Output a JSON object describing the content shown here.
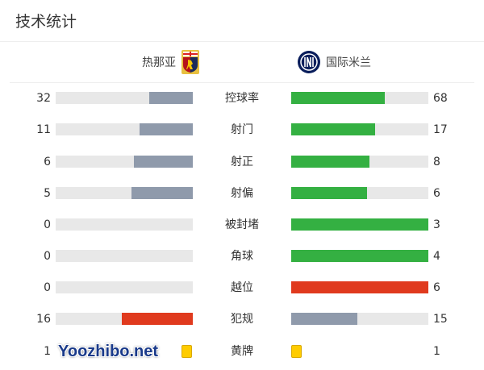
{
  "header": {
    "title": "技术统计"
  },
  "teams": {
    "home": {
      "name": "热那亚",
      "logo": "genoa-crest"
    },
    "away": {
      "name": "国际米兰",
      "logo": "inter-crest"
    }
  },
  "colors": {
    "gray": "#8f9aab",
    "green": "#34b042",
    "red": "#e03a1e",
    "yellow": "#ffcc00",
    "track": "#e8e8e8"
  },
  "stats": [
    {
      "label": "控球率",
      "home": "32",
      "away": "68",
      "home_share": 0.32,
      "away_share": 0.68,
      "home_color": "#8f9aab",
      "away_color": "#34b042"
    },
    {
      "label": "射门",
      "home": "11",
      "away": "17",
      "home_share": 0.39,
      "away_share": 0.61,
      "home_color": "#8f9aab",
      "away_color": "#34b042"
    },
    {
      "label": "射正",
      "home": "6",
      "away": "8",
      "home_share": 0.43,
      "away_share": 0.57,
      "home_color": "#8f9aab",
      "away_color": "#34b042"
    },
    {
      "label": "射偏",
      "home": "5",
      "away": "6",
      "home_share": 0.45,
      "away_share": 0.55,
      "home_color": "#8f9aab",
      "away_color": "#34b042"
    },
    {
      "label": "被封堵",
      "home": "0",
      "away": "3",
      "home_share": 0,
      "away_share": 1,
      "home_color": "#8f9aab",
      "away_color": "#34b042"
    },
    {
      "label": "角球",
      "home": "0",
      "away": "4",
      "home_share": 0,
      "away_share": 1,
      "home_color": "#8f9aab",
      "away_color": "#34b042"
    },
    {
      "label": "越位",
      "home": "0",
      "away": "6",
      "home_share": 0,
      "away_share": 1,
      "home_color": "#8f9aab",
      "away_color": "#e03a1e"
    },
    {
      "label": "犯规",
      "home": "16",
      "away": "15",
      "home_share": 0.52,
      "away_share": 0.48,
      "home_color": "#e03a1e",
      "away_color": "#8f9aab"
    }
  ],
  "cards": {
    "label": "黄牌",
    "home": "1",
    "away": "1"
  },
  "watermark": "Yoozhibo.net"
}
